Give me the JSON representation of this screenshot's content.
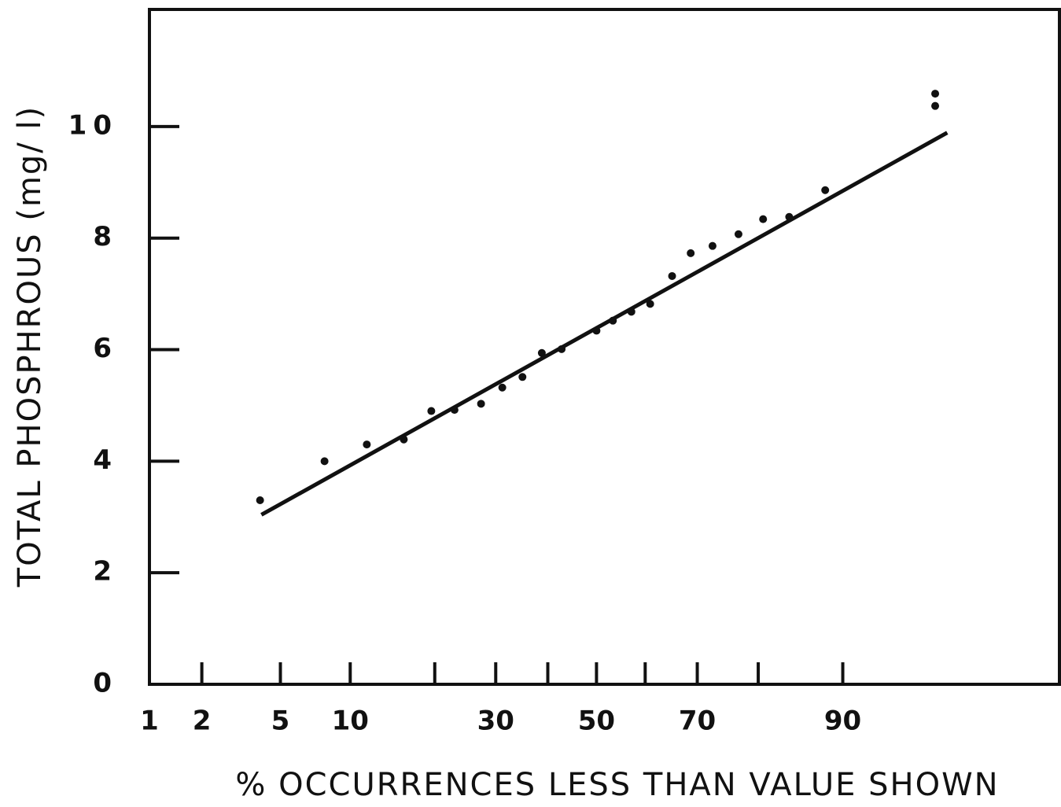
{
  "chart_data": {
    "type": "scatter",
    "x_label": "% OCCURRENCES LESS THAN VALUE SHOWN",
    "y_label": "TOTAL PHOSPHROUS  (mg/ l)",
    "xscale": "probability",
    "xlim": [
      1,
      99.2
    ],
    "ylim": [
      0,
      12.1
    ],
    "xticks": [
      1,
      2,
      5,
      10,
      30,
      50,
      70,
      90
    ],
    "xminor_ticks": [
      20,
      40,
      60,
      80
    ],
    "yticks": [
      0,
      2,
      4,
      6,
      8,
      10
    ],
    "color": "#111111",
    "x": [
      4.0,
      7.85,
      11.6,
      15.8,
      19.5,
      23.0,
      27.4,
      31.2,
      35.0,
      38.8,
      42.8,
      50,
      53.4,
      57.2,
      61.0,
      65.3,
      68.8,
      72.7,
      77.0,
      80.7,
      84.2,
      88.3,
      96.1,
      96.1
    ],
    "values": [
      3.3,
      4.0,
      4.3,
      4.39,
      4.9,
      4.92,
      5.03,
      5.32,
      5.51,
      5.94,
      6.01,
      6.34,
      6.52,
      6.68,
      6.82,
      7.32,
      7.73,
      7.86,
      8.07,
      8.34,
      8.38,
      8.86,
      10.59,
      10.37
    ],
    "fit": {
      "x": [
        4.06,
        96.6
      ],
      "values": [
        3.04,
        9.89
      ]
    }
  }
}
